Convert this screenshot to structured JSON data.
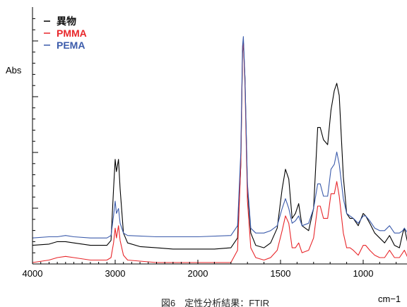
{
  "chart_data": {
    "type": "line",
    "title": "",
    "caption": "図6　定性分析結果：FTIR",
    "xlabel": "cm−1",
    "ylabel": "Abs",
    "xlim": [
      4000,
      700
    ],
    "x_reversed": true,
    "ylim": [
      0,
      1
    ],
    "x_ticks": [
      4000,
      3000,
      2000,
      1500,
      1000
    ],
    "x_scale_note": "axis is non-linear: 4000-2000 region compressed relative to 2000-700",
    "y_ticks_labeled": false,
    "grid": false,
    "legend_position": "top-left",
    "series": [
      {
        "name": "異物",
        "color": "#000000",
        "points": [
          [
            4000,
            0.07
          ],
          [
            3800,
            0.075
          ],
          [
            3700,
            0.085
          ],
          [
            3600,
            0.085
          ],
          [
            3500,
            0.08
          ],
          [
            3300,
            0.07
          ],
          [
            3100,
            0.07
          ],
          [
            3050,
            0.09
          ],
          [
            3020,
            0.3
          ],
          [
            3000,
            0.42
          ],
          [
            2985,
            0.37
          ],
          [
            2960,
            0.42
          ],
          [
            2940,
            0.3
          ],
          [
            2900,
            0.12
          ],
          [
            2850,
            0.08
          ],
          [
            2700,
            0.065
          ],
          [
            2500,
            0.06
          ],
          [
            2300,
            0.055
          ],
          [
            2100,
            0.055
          ],
          [
            1900,
            0.055
          ],
          [
            1800,
            0.06
          ],
          [
            1760,
            0.1
          ],
          [
            1740,
            0.4
          ],
          [
            1730,
            0.85
          ],
          [
            1725,
            0.9
          ],
          [
            1715,
            0.75
          ],
          [
            1700,
            0.3
          ],
          [
            1680,
            0.12
          ],
          [
            1650,
            0.07
          ],
          [
            1600,
            0.06
          ],
          [
            1560,
            0.08
          ],
          [
            1520,
            0.14
          ],
          [
            1490,
            0.3
          ],
          [
            1470,
            0.38
          ],
          [
            1450,
            0.34
          ],
          [
            1430,
            0.18
          ],
          [
            1410,
            0.2
          ],
          [
            1390,
            0.24
          ],
          [
            1370,
            0.15
          ],
          [
            1330,
            0.13
          ],
          [
            1300,
            0.22
          ],
          [
            1275,
            0.55
          ],
          [
            1260,
            0.55
          ],
          [
            1240,
            0.5
          ],
          [
            1215,
            0.48
          ],
          [
            1195,
            0.62
          ],
          [
            1175,
            0.7
          ],
          [
            1160,
            0.73
          ],
          [
            1145,
            0.68
          ],
          [
            1120,
            0.35
          ],
          [
            1100,
            0.2
          ],
          [
            1080,
            0.18
          ],
          [
            1060,
            0.18
          ],
          [
            1030,
            0.15
          ],
          [
            1000,
            0.2
          ],
          [
            985,
            0.19
          ],
          [
            960,
            0.16
          ],
          [
            930,
            0.12
          ],
          [
            900,
            0.1
          ],
          [
            870,
            0.08
          ],
          [
            840,
            0.11
          ],
          [
            810,
            0.07
          ],
          [
            780,
            0.06
          ],
          [
            760,
            0.12
          ],
          [
            750,
            0.14
          ],
          [
            730,
            0.08
          ],
          [
            700,
            0.07
          ]
        ]
      },
      {
        "name": "PMMA",
        "color": "#e8262a",
        "points": [
          [
            4000,
            0.0
          ],
          [
            3800,
            0.01
          ],
          [
            3700,
            0.02
          ],
          [
            3600,
            0.025
          ],
          [
            3500,
            0.02
          ],
          [
            3300,
            0.01
          ],
          [
            3100,
            0.01
          ],
          [
            3050,
            0.02
          ],
          [
            3020,
            0.08
          ],
          [
            3000,
            0.14
          ],
          [
            2985,
            0.1
          ],
          [
            2960,
            0.15
          ],
          [
            2940,
            0.09
          ],
          [
            2900,
            0.03
          ],
          [
            2850,
            0.01
          ],
          [
            2500,
            0.0
          ],
          [
            2000,
            0.0
          ],
          [
            1800,
            0.0
          ],
          [
            1760,
            0.05
          ],
          [
            1740,
            0.4
          ],
          [
            1730,
            0.86
          ],
          [
            1725,
            0.9
          ],
          [
            1715,
            0.72
          ],
          [
            1700,
            0.25
          ],
          [
            1680,
            0.06
          ],
          [
            1650,
            0.02
          ],
          [
            1600,
            0.01
          ],
          [
            1560,
            0.02
          ],
          [
            1520,
            0.05
          ],
          [
            1490,
            0.13
          ],
          [
            1470,
            0.19
          ],
          [
            1450,
            0.16
          ],
          [
            1430,
            0.06
          ],
          [
            1410,
            0.06
          ],
          [
            1390,
            0.08
          ],
          [
            1370,
            0.04
          ],
          [
            1330,
            0.05
          ],
          [
            1300,
            0.1
          ],
          [
            1275,
            0.23
          ],
          [
            1260,
            0.23
          ],
          [
            1240,
            0.18
          ],
          [
            1215,
            0.18
          ],
          [
            1195,
            0.28
          ],
          [
            1175,
            0.28
          ],
          [
            1160,
            0.33
          ],
          [
            1145,
            0.27
          ],
          [
            1120,
            0.12
          ],
          [
            1100,
            0.06
          ],
          [
            1080,
            0.06
          ],
          [
            1060,
            0.05
          ],
          [
            1030,
            0.03
          ],
          [
            1000,
            0.07
          ],
          [
            985,
            0.07
          ],
          [
            960,
            0.05
          ],
          [
            930,
            0.03
          ],
          [
            900,
            0.02
          ],
          [
            870,
            0.02
          ],
          [
            840,
            0.05
          ],
          [
            810,
            0.02
          ],
          [
            780,
            0.02
          ],
          [
            760,
            0.04
          ],
          [
            750,
            0.05
          ],
          [
            730,
            0.02
          ],
          [
            700,
            0.02
          ]
        ]
      },
      {
        "name": "PEMA",
        "color": "#3b5bab",
        "points": [
          [
            4000,
            0.1
          ],
          [
            3800,
            0.105
          ],
          [
            3700,
            0.105
          ],
          [
            3600,
            0.11
          ],
          [
            3500,
            0.105
          ],
          [
            3300,
            0.1
          ],
          [
            3100,
            0.1
          ],
          [
            3050,
            0.11
          ],
          [
            3020,
            0.19
          ],
          [
            3000,
            0.25
          ],
          [
            2985,
            0.2
          ],
          [
            2960,
            0.22
          ],
          [
            2940,
            0.16
          ],
          [
            2900,
            0.12
          ],
          [
            2850,
            0.11
          ],
          [
            2500,
            0.105
          ],
          [
            2000,
            0.105
          ],
          [
            1800,
            0.11
          ],
          [
            1760,
            0.15
          ],
          [
            1740,
            0.45
          ],
          [
            1730,
            0.88
          ],
          [
            1725,
            0.92
          ],
          [
            1715,
            0.75
          ],
          [
            1700,
            0.32
          ],
          [
            1680,
            0.14
          ],
          [
            1650,
            0.12
          ],
          [
            1600,
            0.12
          ],
          [
            1560,
            0.13
          ],
          [
            1520,
            0.15
          ],
          [
            1490,
            0.22
          ],
          [
            1470,
            0.26
          ],
          [
            1450,
            0.22
          ],
          [
            1430,
            0.16
          ],
          [
            1410,
            0.17
          ],
          [
            1390,
            0.19
          ],
          [
            1370,
            0.15
          ],
          [
            1330,
            0.16
          ],
          [
            1300,
            0.22
          ],
          [
            1275,
            0.32
          ],
          [
            1260,
            0.32
          ],
          [
            1240,
            0.27
          ],
          [
            1215,
            0.27
          ],
          [
            1195,
            0.38
          ],
          [
            1175,
            0.4
          ],
          [
            1160,
            0.45
          ],
          [
            1145,
            0.4
          ],
          [
            1120,
            0.26
          ],
          [
            1100,
            0.2
          ],
          [
            1080,
            0.19
          ],
          [
            1060,
            0.18
          ],
          [
            1030,
            0.16
          ],
          [
            1000,
            0.19
          ],
          [
            985,
            0.19
          ],
          [
            960,
            0.17
          ],
          [
            930,
            0.14
          ],
          [
            900,
            0.13
          ],
          [
            870,
            0.13
          ],
          [
            840,
            0.15
          ],
          [
            810,
            0.12
          ],
          [
            780,
            0.12
          ],
          [
            760,
            0.13
          ],
          [
            750,
            0.14
          ],
          [
            730,
            0.12
          ],
          [
            700,
            0.12
          ]
        ]
      }
    ]
  }
}
